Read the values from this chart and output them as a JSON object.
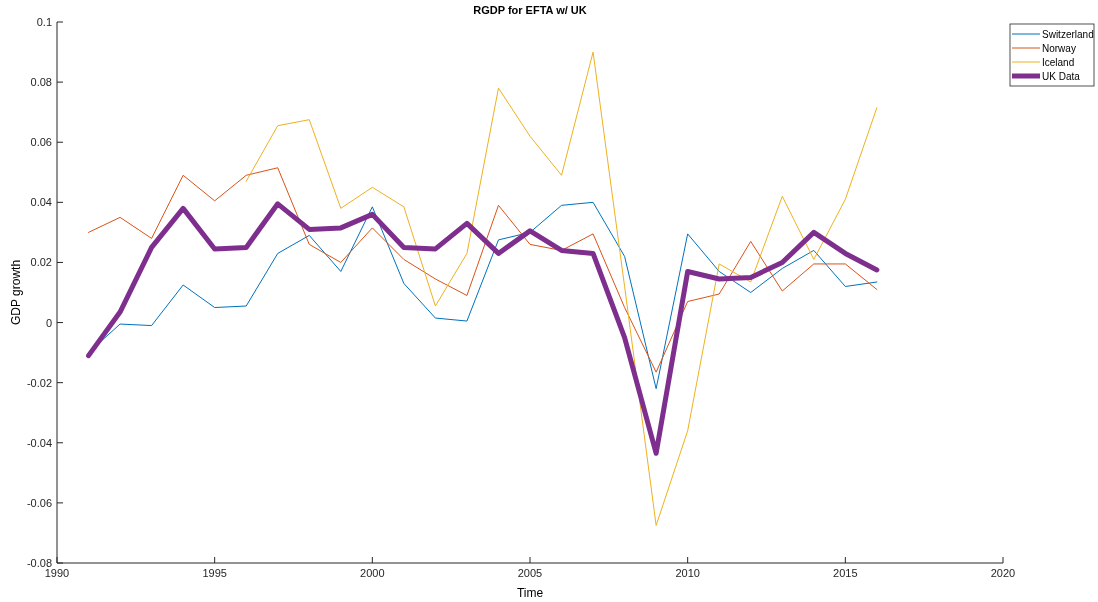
{
  "chart_data": {
    "type": "line",
    "title": "RGDP for EFTA w/ UK",
    "xlabel": "Time",
    "ylabel": "GDP growth",
    "x": [
      1991,
      1992,
      1993,
      1994,
      1995,
      1996,
      1997,
      1998,
      1999,
      2000,
      2001,
      2002,
      2003,
      2004,
      2005,
      2006,
      2007,
      2008,
      2009,
      2010,
      2011,
      2012,
      2013,
      2014,
      2015,
      2016
    ],
    "series": [
      {
        "name": "Switzerland",
        "color": "#0072bd",
        "values": [
          -0.01,
          -0.0005,
          -0.001,
          0.0125,
          0.005,
          0.0055,
          0.023,
          0.029,
          0.017,
          0.0385,
          0.013,
          0.0015,
          0.0005,
          0.0275,
          0.03,
          0.039,
          0.04,
          0.022,
          -0.022,
          0.0295,
          0.017,
          0.01,
          0.018,
          0.024,
          0.012,
          0.0135
        ]
      },
      {
        "name": "Norway",
        "color": "#d95319",
        "values": [
          0.03,
          0.035,
          0.028,
          0.049,
          0.0405,
          0.049,
          0.0515,
          0.026,
          0.02,
          0.0315,
          0.021,
          0.0145,
          0.009,
          0.039,
          0.026,
          0.024,
          0.0295,
          0.005,
          -0.0165,
          0.007,
          0.0095,
          0.027,
          0.0105,
          0.0195,
          0.0195,
          0.011
        ]
      },
      {
        "name": "Iceland",
        "color": "#edb120",
        "values": [
          null,
          null,
          null,
          null,
          null,
          0.047,
          0.0655,
          0.0675,
          0.038,
          0.045,
          0.0385,
          0.0055,
          0.023,
          0.078,
          0.062,
          0.049,
          0.09,
          0.012,
          -0.0675,
          -0.036,
          0.0195,
          0.0135,
          0.042,
          0.021,
          0.041,
          0.0715
        ]
      },
      {
        "name": "UK Data",
        "color": "#7e2f8e",
        "values": [
          -0.011,
          0.0035,
          0.025,
          0.038,
          0.0245,
          0.025,
          0.0395,
          0.031,
          0.0315,
          0.036,
          0.025,
          0.0245,
          0.033,
          0.023,
          0.0305,
          0.024,
          0.023,
          -0.005,
          -0.0435,
          0.017,
          0.0145,
          0.015,
          0.02,
          0.03,
          0.023,
          0.0175
        ]
      }
    ],
    "xlim": [
      1990,
      2020
    ],
    "xticks": [
      1990,
      1995,
      2000,
      2005,
      2010,
      2015,
      2020
    ],
    "ylim": [
      -0.08,
      0.1
    ],
    "yticks": [
      -0.08,
      -0.06,
      -0.04,
      -0.02,
      0,
      0.02,
      0.04,
      0.06,
      0.08,
      0.1
    ],
    "grid": false,
    "legend": "top right",
    "line_style": "solid"
  }
}
